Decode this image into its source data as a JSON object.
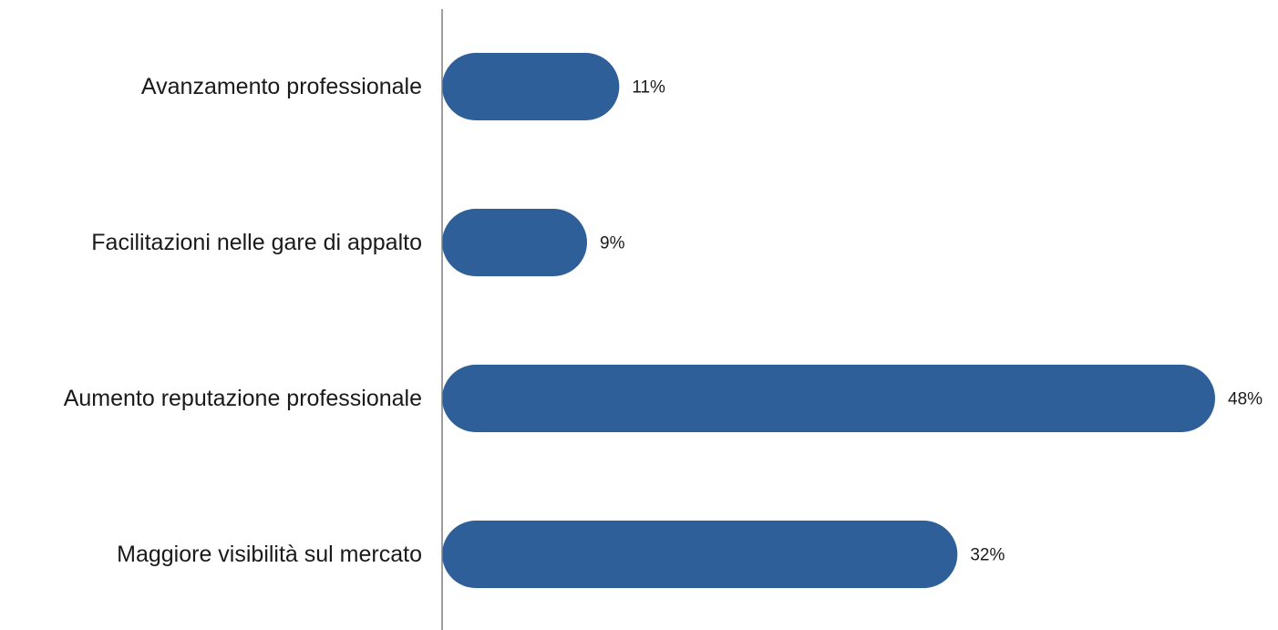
{
  "chart_data": {
    "type": "bar",
    "orientation": "horizontal",
    "categories": [
      "Avanzamento professionale",
      "Facilitazioni nelle gare di appalto",
      "Aumento reputazione professionale",
      "Maggiore visibilità sul mercato"
    ],
    "values": [
      11,
      9,
      48,
      32
    ],
    "value_labels": [
      "11%",
      "9%",
      "48%",
      "32%"
    ],
    "unit": "%",
    "title": "",
    "xlabel": "",
    "ylabel": "",
    "xlim": [
      0,
      48
    ],
    "grid": false,
    "legend": "none",
    "bar_color": "#2f5f98",
    "axis_color": "#7f7f7f"
  }
}
